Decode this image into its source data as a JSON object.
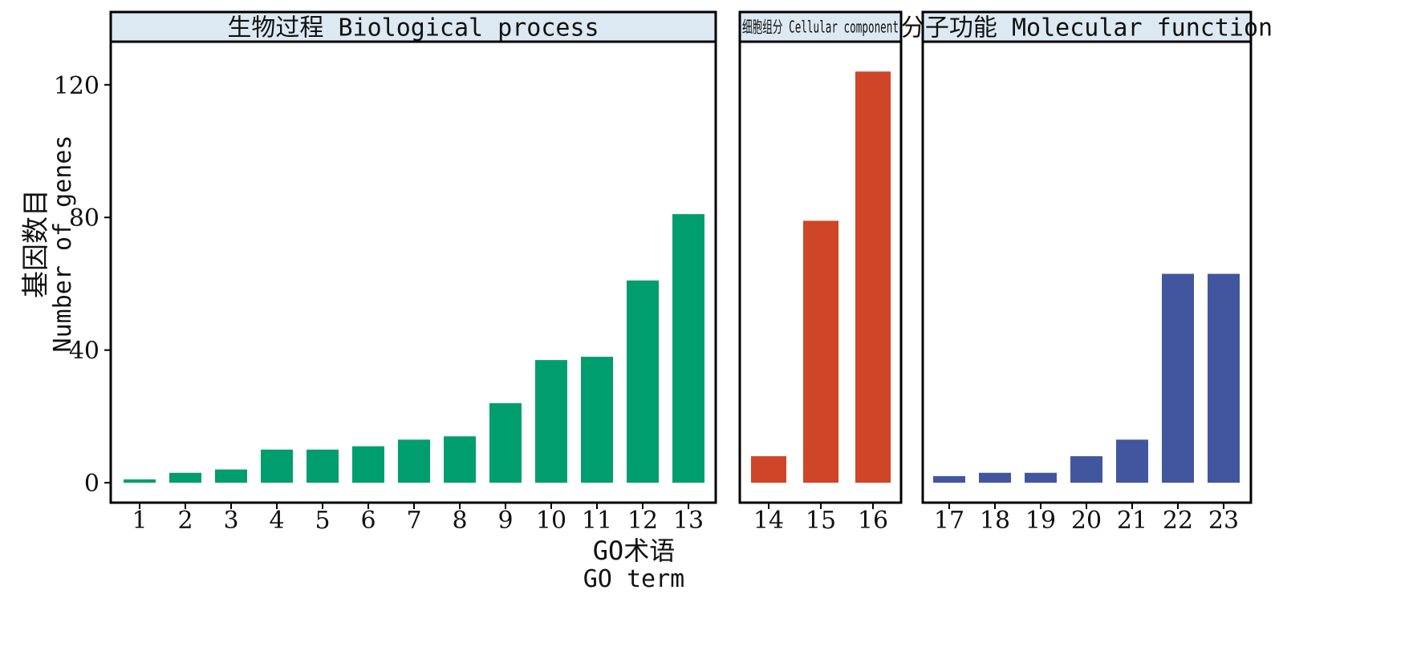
{
  "chart_data": {
    "type": "bar",
    "ylabel": "Number of genes",
    "ylabel_zh": "基因数目",
    "xlabel": "GO term",
    "xlabel_zh": "GO术语",
    "ylim": [
      -6,
      133
    ],
    "yticks": [
      0,
      40,
      80,
      120
    ],
    "strip_color": "#dce9f3",
    "panels": [
      {
        "key": "bp",
        "title": "生物过程 Biological process",
        "color": "#009e6e",
        "categories": [
          "1",
          "2",
          "3",
          "4",
          "5",
          "6",
          "7",
          "8",
          "9",
          "10",
          "11",
          "12",
          "13"
        ],
        "values": [
          1,
          3,
          4,
          10,
          10,
          11,
          13,
          14,
          24,
          37,
          38,
          61,
          81
        ]
      },
      {
        "key": "cc",
        "title": "细胞组分 Cellular component",
        "color": "#cf4527",
        "categories": [
          "14",
          "15",
          "16"
        ],
        "values": [
          8,
          79,
          124
        ]
      },
      {
        "key": "mf",
        "title": "分子功能 Molecular function",
        "color": "#42569f",
        "categories": [
          "17",
          "18",
          "19",
          "20",
          "21",
          "22",
          "23"
        ],
        "values": [
          2,
          3,
          3,
          8,
          13,
          63,
          63
        ]
      }
    ]
  }
}
